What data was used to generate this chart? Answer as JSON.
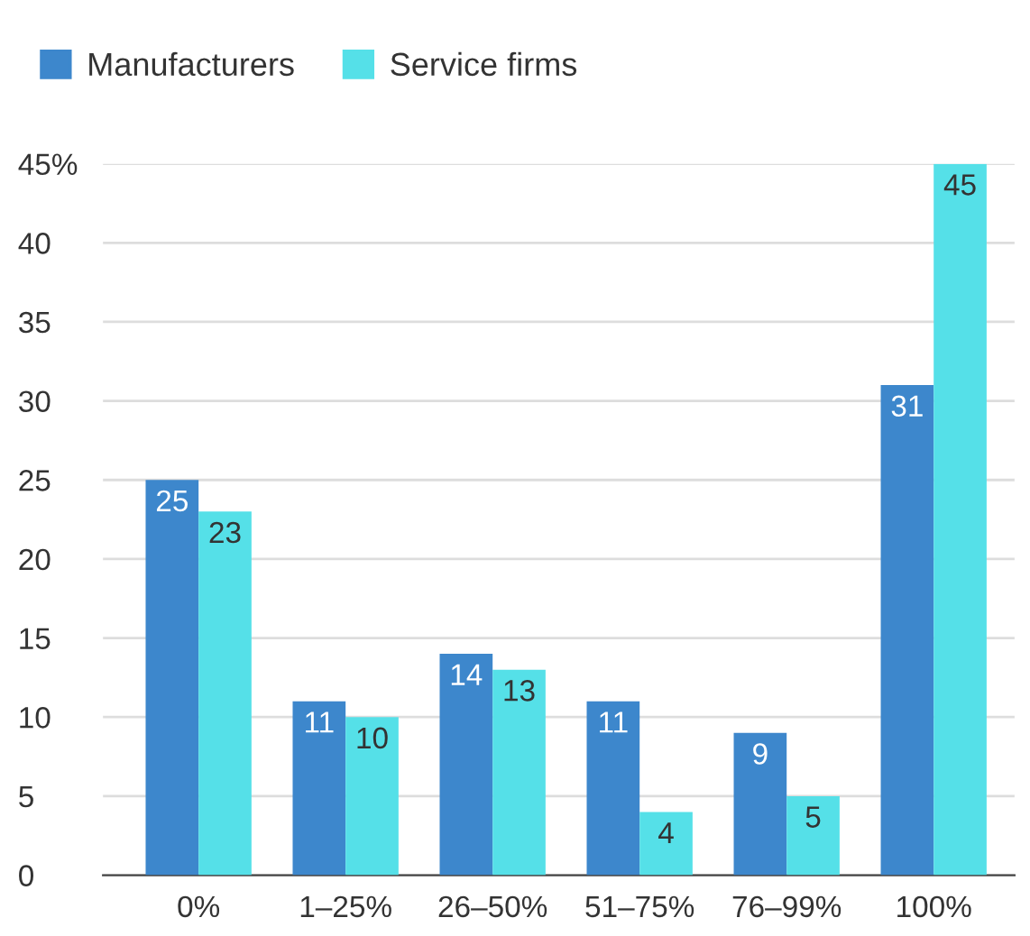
{
  "chart_data": {
    "type": "bar",
    "categories": [
      "0%",
      "1–25%",
      "26–50%",
      "51–75%",
      "76–99%",
      "100%"
    ],
    "series": [
      {
        "name": "Manufacturers",
        "color": "#3d87cc",
        "values": [
          25,
          11,
          14,
          11,
          9,
          31
        ]
      },
      {
        "name": "Service firms",
        "color": "#55e0e8",
        "values": [
          23,
          10,
          13,
          4,
          5,
          45
        ]
      }
    ],
    "ylim": [
      0,
      45
    ],
    "yticks": [
      0,
      5,
      10,
      15,
      20,
      25,
      30,
      35,
      40,
      {
        "value": 45,
        "label": "45%"
      }
    ],
    "grid": "y",
    "legend": "top left",
    "data_labels": true
  }
}
